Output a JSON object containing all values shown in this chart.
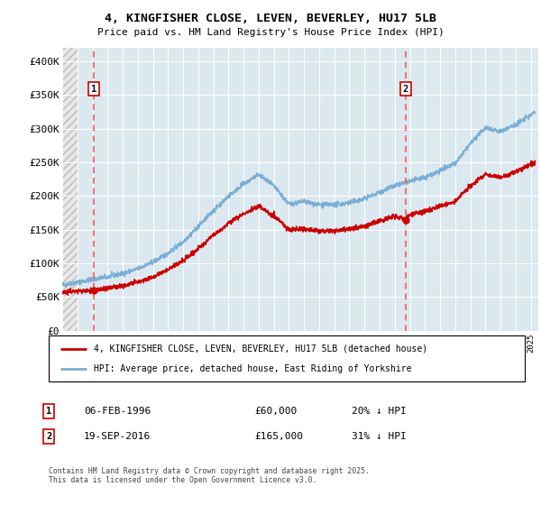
{
  "title_line1": "4, KINGFISHER CLOSE, LEVEN, BEVERLEY, HU17 5LB",
  "title_line2": "Price paid vs. HM Land Registry's House Price Index (HPI)",
  "legend_line1": "4, KINGFISHER CLOSE, LEVEN, BEVERLEY, HU17 5LB (detached house)",
  "legend_line2": "HPI: Average price, detached house, East Riding of Yorkshire",
  "footnote": "Contains HM Land Registry data © Crown copyright and database right 2025.\nThis data is licensed under the Open Government Licence v3.0.",
  "marker1_date": "06-FEB-1996",
  "marker1_price": 60000,
  "marker1_label": "20% ↓ HPI",
  "marker1_x": 1996.1,
  "marker2_date": "19-SEP-2016",
  "marker2_price": 165000,
  "marker2_label": "31% ↓ HPI",
  "marker2_x": 2016.72,
  "xmin": 1994,
  "xmax": 2025.5,
  "ymin": 0,
  "ymax": 420000,
  "yticks": [
    0,
    50000,
    100000,
    150000,
    200000,
    250000,
    300000,
    350000,
    400000
  ],
  "ytick_labels": [
    "£0",
    "£50K",
    "£100K",
    "£150K",
    "£200K",
    "£250K",
    "£300K",
    "£350K",
    "£400K"
  ],
  "plot_bg_color": "#dce8f0",
  "red_line_color": "#cc0000",
  "blue_line_color": "#7aaed6",
  "marker_box_color": "#cc0000",
  "dashed_line_color": "#ff5555",
  "hpi_waypoints_x": [
    1994,
    1995,
    1996,
    1997,
    1998,
    1999,
    2000,
    2001,
    2002,
    2003,
    2004,
    2005,
    2006,
    2007,
    2008,
    2009,
    2010,
    2011,
    2012,
    2013,
    2014,
    2015,
    2016,
    2017,
    2018,
    2019,
    2020,
    2021,
    2022,
    2023,
    2024,
    2025.3
  ],
  "hpi_waypoints_y": [
    68000,
    72000,
    76000,
    80000,
    85000,
    92000,
    102000,
    115000,
    132000,
    155000,
    178000,
    200000,
    218000,
    232000,
    215000,
    188000,
    192000,
    187000,
    187000,
    190000,
    196000,
    206000,
    215000,
    222000,
    228000,
    238000,
    248000,
    278000,
    302000,
    296000,
    306000,
    325000
  ],
  "prop_waypoints_x": [
    1994,
    1996.1,
    1997,
    1998,
    1999,
    2000,
    2001,
    2002,
    2003,
    2004,
    2005,
    2006,
    2007,
    2008,
    2009,
    2010,
    2011,
    2012,
    2013,
    2014,
    2015,
    2016,
    2016.72,
    2017,
    2018,
    2019,
    2020,
    2021,
    2022,
    2023,
    2024,
    2025.3
  ],
  "prop_waypoints_y": [
    58000,
    60000,
    63000,
    67000,
    72000,
    80000,
    91000,
    104000,
    122000,
    142000,
    159000,
    174000,
    185000,
    171000,
    150000,
    152000,
    148000,
    149000,
    151000,
    155000,
    163000,
    170000,
    165000,
    173000,
    177000,
    185000,
    192000,
    215000,
    233000,
    228000,
    236000,
    250000
  ]
}
